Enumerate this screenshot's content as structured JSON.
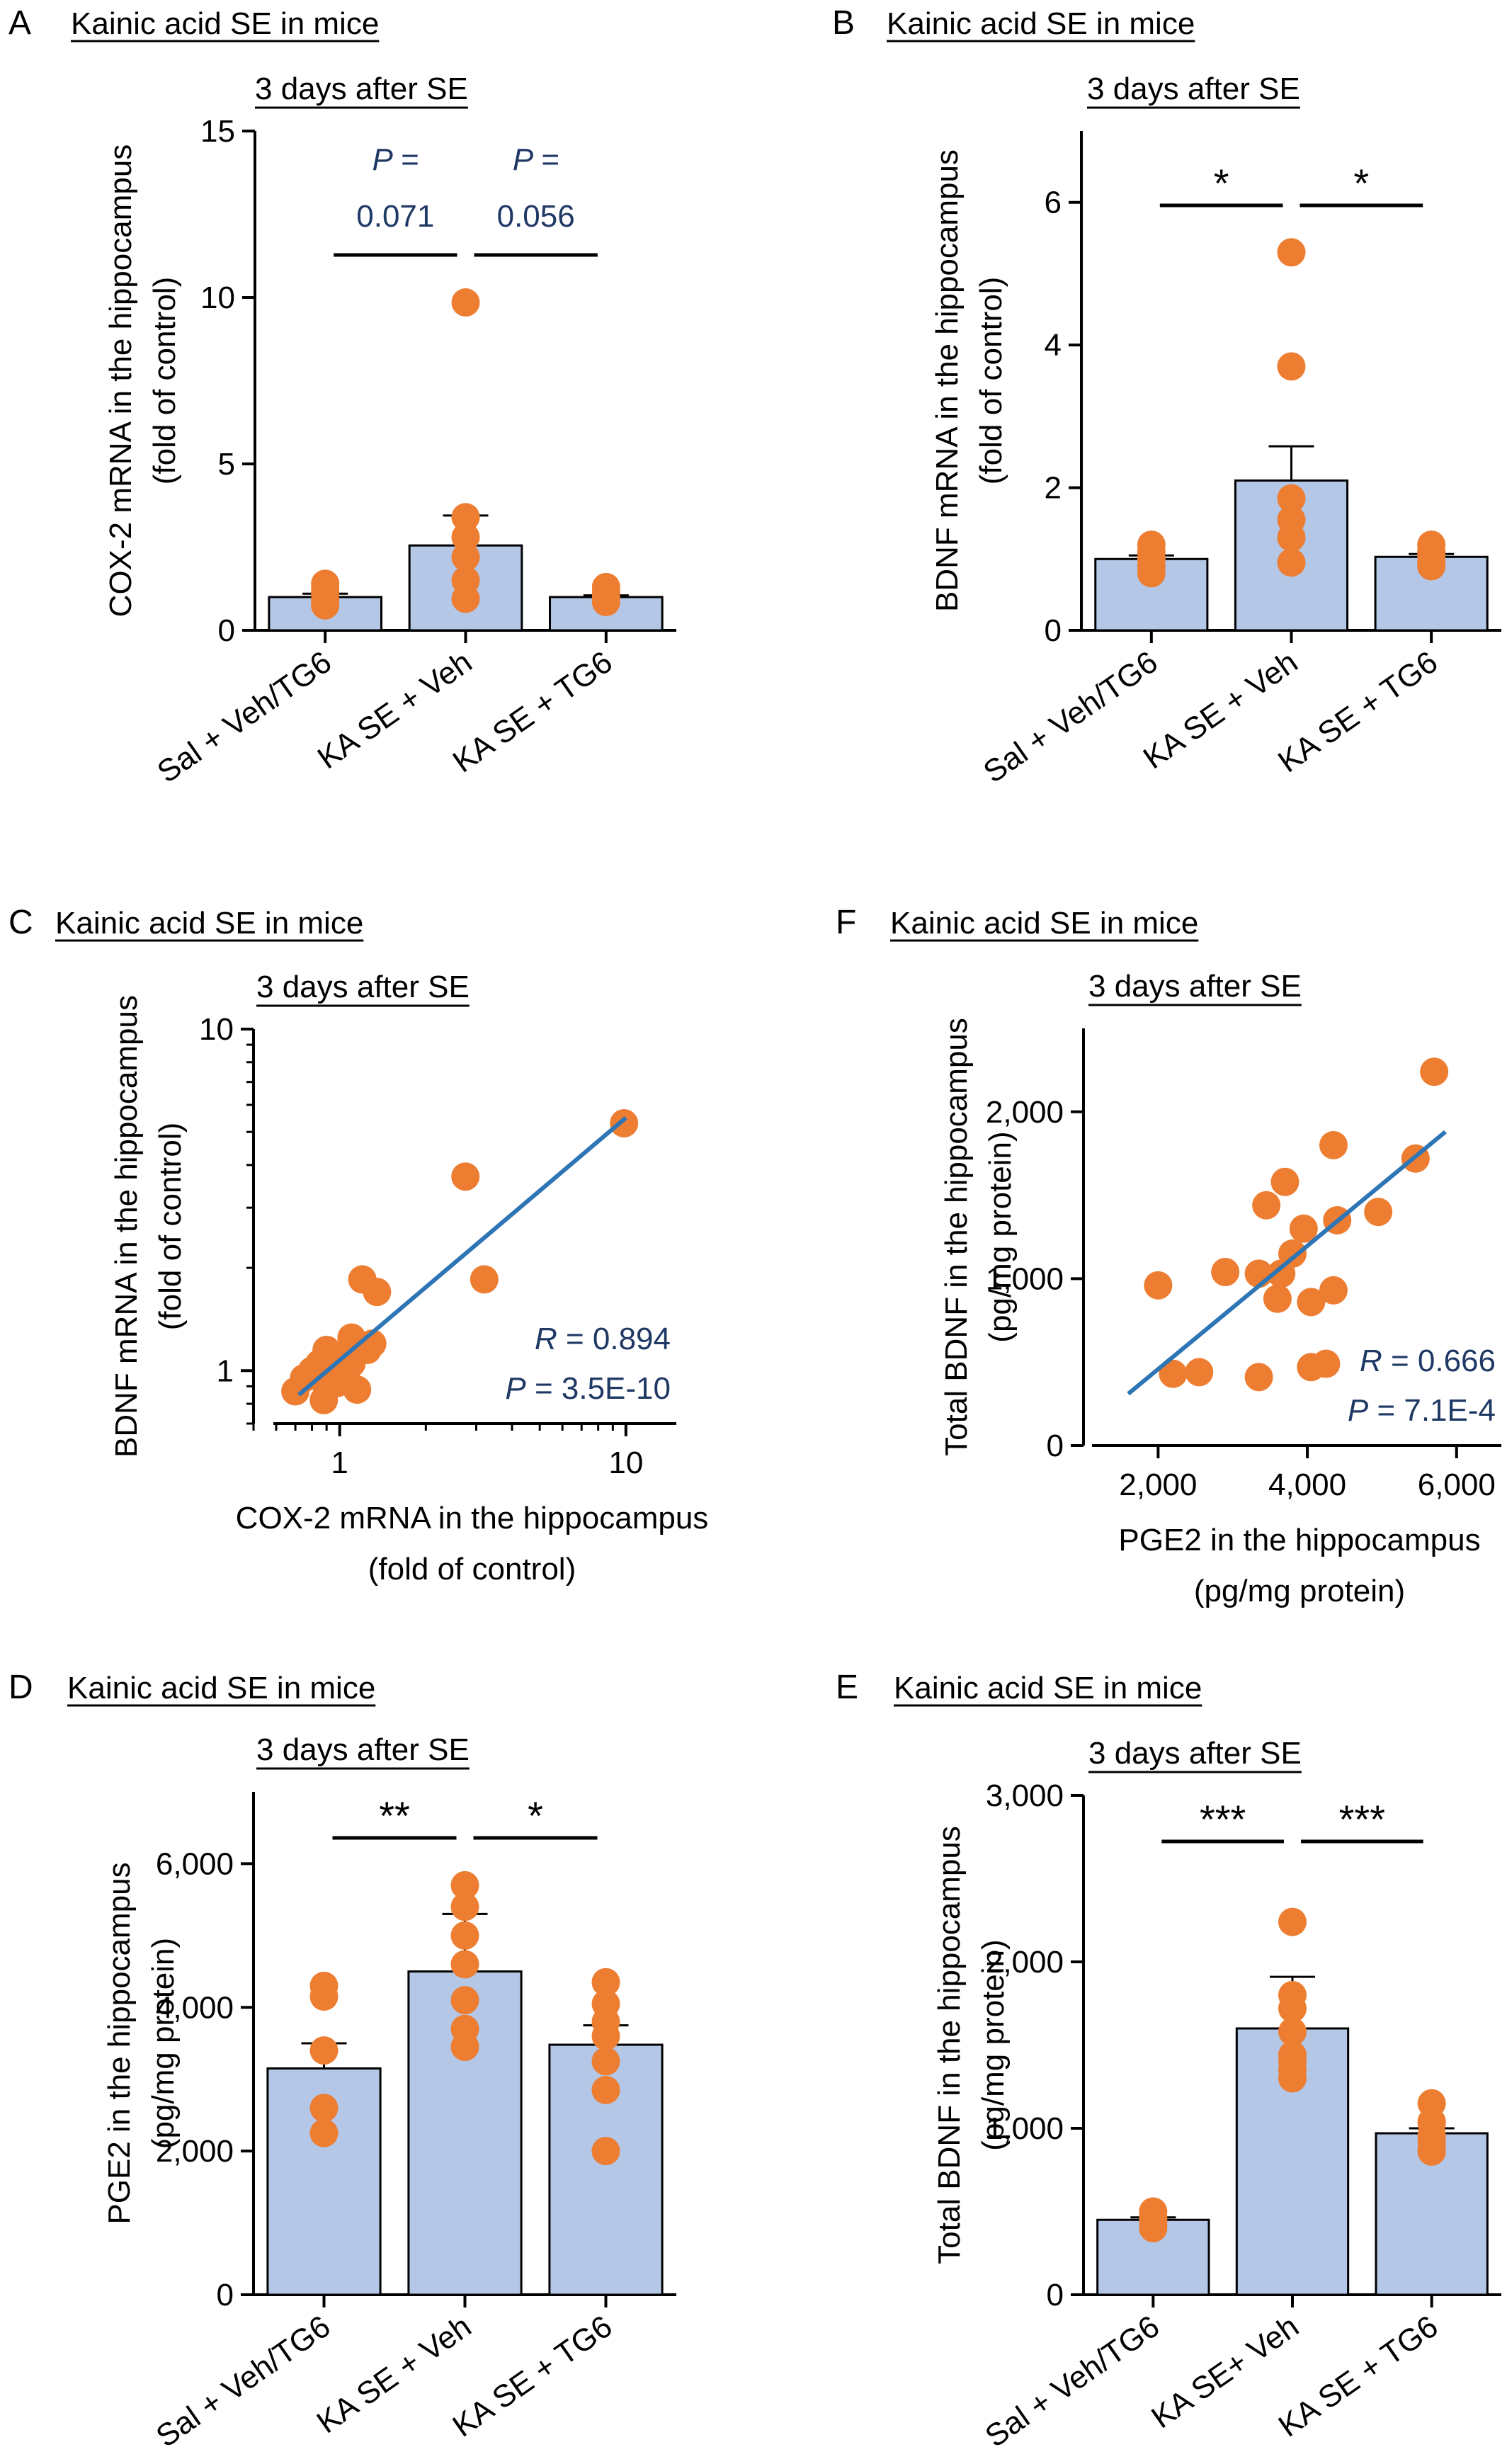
{
  "colors": {
    "bar_fill": "#b4c7e7",
    "bar_stroke": "#000000",
    "dot": "#ed7d31",
    "fit_line": "#2e75b6",
    "stat_text": "#1f3864",
    "axis": "#000000"
  },
  "chart_data": [
    {
      "panel": "A",
      "heading": "Kainic acid SE in mice",
      "type": "bar",
      "title": "3 days after SE",
      "ylabel": [
        "COX-2 mRNA in the hippocampus",
        "(fold of control)"
      ],
      "categories": [
        "Sal + Veh/TG6",
        "KA SE + Veh",
        "KA SE + TG6"
      ],
      "values": [
        1.0,
        2.55,
        1.0
      ],
      "sem": [
        0.1,
        0.9,
        0.05
      ],
      "points": [
        [
          1.4,
          1.25,
          1.1,
          0.9,
          0.75
        ],
        [
          9.85,
          3.4,
          2.8,
          2.2,
          1.5,
          0.95
        ],
        [
          1.3,
          1.15,
          1.0,
          0.95,
          0.85
        ]
      ],
      "ylim": [
        0,
        15
      ],
      "yticks": [
        0,
        5,
        10,
        15
      ],
      "ytick_labels": [
        "0",
        "5",
        "10",
        "15"
      ],
      "comparisons": [
        {
          "from": 0,
          "to": 1,
          "label": [
            "P =",
            "0.071"
          ]
        },
        {
          "from": 1,
          "to": 2,
          "label": [
            "P =",
            "0.056"
          ]
        }
      ]
    },
    {
      "panel": "B",
      "heading": "Kainic acid SE in mice",
      "type": "bar",
      "title": "3 days after SE",
      "ylabel": [
        "BDNF mRNA in the hippocampus",
        "(fold of control)"
      ],
      "categories": [
        "Sal + Veh/TG6",
        "KA SE + Veh",
        "KA SE + TG6"
      ],
      "values": [
        1.0,
        2.1,
        1.03
      ],
      "sem": [
        0.05,
        0.48,
        0.04
      ],
      "points": [
        [
          1.2,
          1.1,
          1.0,
          0.9,
          0.8
        ],
        [
          5.3,
          3.7,
          1.85,
          1.55,
          1.3,
          0.95
        ],
        [
          1.2,
          1.1,
          1.05,
          0.95,
          0.9
        ]
      ],
      "ylim": [
        0,
        7
      ],
      "yticks": [
        0,
        2,
        4,
        6
      ],
      "ytick_labels": [
        "0",
        "2",
        "4",
        "6"
      ],
      "comparisons": [
        {
          "from": 0,
          "to": 1,
          "label": [
            "*"
          ]
        },
        {
          "from": 1,
          "to": 2,
          "label": [
            "*"
          ]
        }
      ]
    },
    {
      "panel": "C",
      "heading": "Kainic acid SE in mice",
      "type": "scatter",
      "title": "3 days after SE",
      "xscale": "log",
      "yscale": "log",
      "xlabel": [
        "COX-2 mRNA in the hippocampus",
        "(fold of control)"
      ],
      "ylabel": [
        "BDNF mRNA in the hippocampus",
        "(fold of control)"
      ],
      "xlim": [
        0.5,
        15
      ],
      "ylim": [
        0.7,
        10
      ],
      "xticks": [
        1,
        10
      ],
      "xtick_labels": [
        "1",
        "10"
      ],
      "yticks": [
        1,
        10
      ],
      "ytick_labels": [
        "1",
        "10"
      ],
      "points": [
        [
          9.85,
          5.3
        ],
        [
          2.75,
          3.7
        ],
        [
          3.2,
          1.85
        ],
        [
          1.2,
          1.85
        ],
        [
          1.35,
          1.7
        ],
        [
          1.1,
          1.25
        ],
        [
          1.3,
          1.2
        ],
        [
          1.25,
          1.15
        ],
        [
          1.0,
          1.1
        ],
        [
          0.9,
          1.15
        ],
        [
          0.85,
          1.05
        ],
        [
          0.8,
          1.0
        ],
        [
          0.95,
          1.0
        ],
        [
          1.05,
          0.95
        ],
        [
          0.9,
          0.9
        ],
        [
          0.75,
          0.95
        ],
        [
          0.7,
          0.87
        ],
        [
          1.15,
          0.88
        ],
        [
          0.88,
          0.82
        ],
        [
          0.98,
          0.92
        ],
        [
          1.1,
          1.05
        ]
      ],
      "fit": [
        [
          0.72,
          0.85
        ],
        [
          10.0,
          5.5
        ]
      ],
      "stats": [
        {
          "symbol": "R",
          "text": " = 0.894"
        },
        {
          "symbol": "P",
          "text": " = 3.5E-10"
        }
      ]
    },
    {
      "panel": "F",
      "heading": "Kainic acid SE in mice",
      "type": "scatter",
      "title": "3 days after SE",
      "xlabel": [
        "PGE2 in the hippocampus",
        "(pg/mg protein)"
      ],
      "ylabel": [
        "Total BDNF in the hippocampus",
        "(pg/mg protein)"
      ],
      "xlim": [
        1000,
        6600
      ],
      "ylim": [
        0,
        2500
      ],
      "xticks": [
        2000,
        4000,
        6000
      ],
      "xtick_labels": [
        "2,000",
        "4,000",
        "6,000"
      ],
      "yticks": [
        0,
        1000,
        2000
      ],
      "ytick_labels": [
        "0",
        "1,000",
        "2,000"
      ],
      "points": [
        [
          5700,
          2240
        ],
        [
          4350,
          1800
        ],
        [
          5450,
          1720
        ],
        [
          3700,
          1580
        ],
        [
          3450,
          1440
        ],
        [
          4950,
          1400
        ],
        [
          4400,
          1350
        ],
        [
          3950,
          1300
        ],
        [
          3800,
          1150
        ],
        [
          2900,
          1040
        ],
        [
          3350,
          1030
        ],
        [
          3650,
          1030
        ],
        [
          2000,
          960
        ],
        [
          4350,
          930
        ],
        [
          3600,
          880
        ],
        [
          4050,
          860
        ],
        [
          4250,
          490
        ],
        [
          4050,
          470
        ],
        [
          2550,
          440
        ],
        [
          2200,
          430
        ],
        [
          3350,
          410
        ]
      ],
      "fit": [
        [
          1600,
          310
        ],
        [
          5850,
          1880
        ]
      ],
      "stats": [
        {
          "symbol": "R",
          "text": " = 0.666"
        },
        {
          "symbol": "P",
          "text": " = 7.1E-4"
        }
      ]
    },
    {
      "panel": "D",
      "heading": "Kainic acid SE in mice",
      "type": "bar",
      "title": "3 days after SE",
      "ylabel": [
        "PGE2 in the hippocampus",
        "(pg/mg protein)"
      ],
      "categories": [
        "Sal + Veh/TG6",
        "KA SE + Veh",
        "KA SE + TG6"
      ],
      "values": [
        3150,
        4500,
        3480
      ],
      "sem": [
        350,
        800,
        270
      ],
      "points": [
        [
          4300,
          4150,
          3400,
          2600,
          2250
        ],
        [
          5700,
          5400,
          5000,
          4600,
          4100,
          3700,
          3450
        ],
        [
          4350,
          4050,
          3800,
          3600,
          3250,
          2850,
          2000
        ]
      ],
      "ylim": [
        0,
        7000
      ],
      "yticks": [
        0,
        2000,
        4000,
        6000
      ],
      "ytick_labels": [
        "0",
        "2,000",
        "4,000",
        "6,000"
      ],
      "comparisons": [
        {
          "from": 0,
          "to": 1,
          "label": [
            "**"
          ]
        },
        {
          "from": 1,
          "to": 2,
          "label": [
            "*"
          ]
        }
      ]
    },
    {
      "panel": "E",
      "heading": "Kainic acid SE in mice",
      "type": "bar",
      "title": "3 days after SE",
      "ylabel": [
        "Total BDNF in the hippocampus",
        "(pg/mg protein)"
      ],
      "categories": [
        "Sal + Veh/TG6",
        "KA SE+ Veh",
        "KA SE + TG6"
      ],
      "values": [
        450,
        1600,
        970
      ],
      "sem": [
        15,
        310,
        30
      ],
      "points": [
        [
          500,
          470,
          450,
          420,
          400
        ],
        [
          2240,
          1800,
          1720,
          1580,
          1440,
          1400,
          1350,
          1300
        ],
        [
          1150,
          1040,
          1030,
          960,
          930,
          880,
          860
        ]
      ],
      "ylim": [
        0,
        3000
      ],
      "yticks": [
        0,
        1000,
        2000,
        3000
      ],
      "ytick_labels": [
        "0",
        "1,000",
        "2,000",
        "3,000"
      ],
      "comparisons": [
        {
          "from": 0,
          "to": 1,
          "label": [
            "***"
          ]
        },
        {
          "from": 1,
          "to": 2,
          "label": [
            "***"
          ]
        }
      ]
    }
  ]
}
